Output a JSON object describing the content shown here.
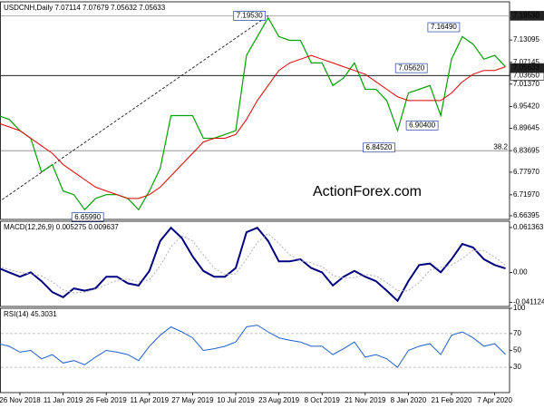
{
  "chart_data": [
    {
      "type": "line",
      "title": "USDCNH,Daily  7.07114 7.07679 7.05632 7.05633",
      "watermark": "ActionForex.com",
      "categories": [
        null,
        null,
        "26 Nov 2018",
        null,
        null,
        null,
        "11 Jan 2019",
        null,
        null,
        null,
        "26 Feb 2019",
        null,
        null,
        null,
        "11 Apr 2019",
        null,
        null,
        null,
        "27 May 2019",
        null,
        null,
        null,
        "10 Jul 2019",
        null,
        null,
        null,
        "23 Aug 2019",
        null,
        null,
        null,
        "8 Oct 2019",
        null,
        null,
        null,
        "21 Nov 2019",
        null,
        null,
        null,
        "8 Jan 2020",
        null,
        null,
        null,
        "21 Feb 2020",
        null,
        null,
        null,
        "7 Apr 2020",
        null
      ],
      "series": [
        {
          "color": "#00a000",
          "line_width": 1.2,
          "values": [
            6.93,
            6.92,
            6.89,
            6.87,
            6.78,
            6.8,
            6.73,
            6.72,
            6.68,
            6.71,
            6.72,
            6.72,
            6.71,
            6.68,
            6.73,
            6.79,
            6.93,
            6.93,
            6.93,
            6.87,
            6.87,
            6.88,
            6.89,
            7.09,
            7.14,
            7.19,
            7.14,
            7.13,
            7.13,
            7.07,
            7.07,
            7.01,
            7.03,
            7.07,
            7.0,
            7.0,
            6.97,
            6.89,
            6.99,
            7.0,
            7.01,
            6.93,
            7.08,
            7.14,
            7.12,
            7.08,
            7.09,
            7.06
          ]
        },
        {
          "color": "#e00000",
          "line_width": 1,
          "values": [
            6.91,
            6.9,
            6.89,
            6.87,
            6.85,
            6.83,
            6.8,
            6.78,
            6.76,
            6.74,
            6.73,
            6.72,
            6.71,
            6.71,
            6.72,
            6.74,
            6.77,
            6.8,
            6.83,
            6.86,
            6.87,
            6.87,
            6.88,
            6.92,
            6.97,
            7.01,
            7.05,
            7.07,
            7.08,
            7.09,
            7.08,
            7.07,
            7.06,
            7.05,
            7.04,
            7.02,
            7.0,
            6.98,
            6.97,
            6.97,
            6.97,
            6.97,
            6.99,
            7.02,
            7.04,
            7.05,
            7.05,
            7.06
          ]
        }
      ],
      "ylim": [
        6.6543,
        7.2324
      ],
      "yticks": [
        7.13095,
        7.07145,
        {
          "value": 7.0137,
          "label": "7.01370"
        },
        {
          "value": 6.9542,
          "label": "6.95420"
        },
        6.89645,
        6.83695,
        {
          "value": 6.7797,
          "label": "6.77970"
        },
        {
          "value": 6.7197,
          "label": "6.71970"
        },
        6.66395
      ],
      "levels": [
        {
          "value": 7.1953,
          "label": "7.19530",
          "color": "#999999",
          "highlight": true
        },
        {
          "value": 7.0365,
          "label": "7.03650",
          "color": "#000000",
          "highlight": false
        }
      ],
      "last_price": {
        "value": 7.05633,
        "label": "7.05633"
      },
      "fib": {
        "price": 6.83695,
        "level": 38.2
      },
      "trendline": {
        "from": {
          "index": 0,
          "value": 6.7
        },
        "to": {
          "index": 25,
          "value": 7.1953
        }
      },
      "annotations": [
        {
          "label": "7.19530",
          "value": 7.1953,
          "index": 25
        },
        {
          "label": "7.16490",
          "value": 7.1649,
          "index": 43
        },
        {
          "label": "7.05620",
          "value": 7.0562,
          "index": 40
        },
        {
          "label": "6.90400",
          "value": 6.904,
          "index": 41
        },
        {
          "label": "6.84520",
          "value": 6.8452,
          "index": 37
        },
        {
          "label": "6.65990",
          "value": 6.6599,
          "index": 10
        }
      ]
    },
    {
      "type": "line",
      "title": "MACD(12,26,9) 0.005275 0.009637",
      "series": [
        {
          "color": "#000080",
          "line_width": 2,
          "values": [
            0.006,
            0.0,
            -0.006,
            0.0,
            -0.012,
            -0.027,
            -0.034,
            -0.022,
            -0.025,
            -0.022,
            -0.006,
            -0.006,
            -0.015,
            -0.018,
            0.002,
            0.043,
            0.061,
            0.047,
            0.022,
            0.002,
            -0.006,
            -0.006,
            0.006,
            0.055,
            0.061,
            0.043,
            0.015,
            0.015,
            0.018,
            0.006,
            0.0,
            -0.018,
            -0.006,
            0.002,
            -0.006,
            -0.012,
            -0.025,
            -0.039,
            -0.012,
            0.01,
            0.012,
            0.0,
            0.018,
            0.039,
            0.034,
            0.018,
            0.01,
            0.005275
          ]
        },
        {
          "color": "#b0b0b0",
          "line_width": 1,
          "style": "dotted",
          "values": [
            0.008,
            0.004,
            0.0,
            -0.002,
            -0.005,
            -0.013,
            -0.024,
            -0.028,
            -0.027,
            -0.023,
            -0.017,
            -0.011,
            -0.009,
            -0.013,
            -0.01,
            0.009,
            0.035,
            0.05,
            0.043,
            0.024,
            0.006,
            -0.003,
            -0.002,
            0.018,
            0.041,
            0.053,
            0.04,
            0.024,
            0.016,
            0.013,
            0.008,
            -0.004,
            -0.008,
            -0.007,
            -0.003,
            -0.005,
            -0.014,
            -0.025,
            -0.025,
            -0.014,
            0.003,
            0.007,
            0.01,
            0.019,
            0.03,
            0.03,
            0.021,
            0.009637
          ]
        }
      ],
      "ylim": [
        -0.04664,
        0.06996
      ],
      "yticks": [
        0.061363,
        {
          "value": 0,
          "label": "0.00"
        },
        -0.041124
      ]
    },
    {
      "type": "line",
      "title": "RSI(14) 45.3031",
      "series": [
        {
          "color": "#2060d0",
          "line_width": 1,
          "values": [
            58,
            55,
            48,
            50,
            40,
            45,
            35,
            38,
            33,
            42,
            50,
            48,
            45,
            38,
            55,
            68,
            78,
            72,
            65,
            50,
            52,
            55,
            60,
            78,
            80,
            72,
            65,
            62,
            60,
            55,
            55,
            45,
            52,
            60,
            42,
            45,
            40,
            30,
            50,
            55,
            58,
            45,
            68,
            72,
            65,
            55,
            58,
            45.3031
          ]
        }
      ],
      "ylim": [
        0,
        100
      ],
      "yticks": [
        100,
        70,
        50,
        30
      ],
      "levels": [
        70,
        30
      ]
    }
  ]
}
